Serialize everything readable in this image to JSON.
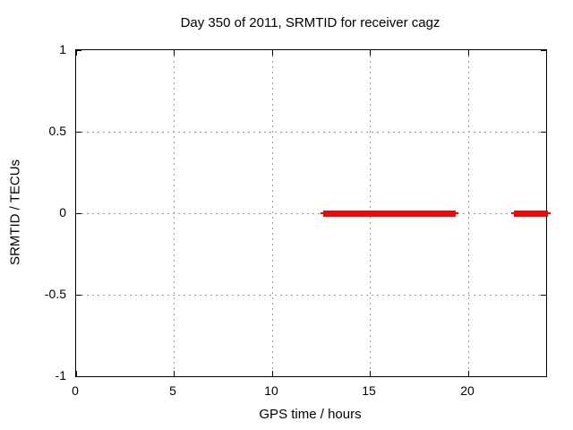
{
  "chart_data": {
    "type": "line",
    "title": "Day 350 of 2011, SRMTID for receiver cagz",
    "xlabel": "GPS time / hours",
    "ylabel": "SRMTID / TECUs",
    "xlim": [
      0,
      24
    ],
    "ylim": [
      -1,
      1
    ],
    "xticks": {
      "values": [
        0,
        5,
        10,
        15,
        20
      ],
      "labels": [
        "0",
        "5",
        "10",
        "15",
        "20"
      ]
    },
    "yticks": {
      "values": [
        1,
        0.5,
        0,
        -0.5,
        -1
      ],
      "labels": [
        "1",
        "0.5",
        "0",
        "-0.5",
        "-1"
      ]
    },
    "grid": true,
    "legend": "none",
    "colors": {
      "series": "#ff0000",
      "grid": "#9a9a9a",
      "border": "#000000",
      "background": "#ffffff"
    },
    "series": [
      {
        "name": "SRMTID",
        "color": "#ff0000",
        "style": "points",
        "segments": [
          {
            "x_start": 12.6,
            "x_end": 19.35,
            "y": 0
          },
          {
            "x_start": 22.35,
            "x_end": 24.1,
            "y": 0
          }
        ]
      }
    ]
  }
}
